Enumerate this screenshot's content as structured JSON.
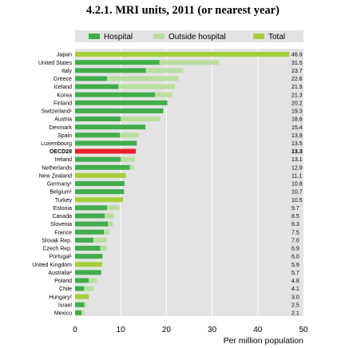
{
  "title": "4.2.1. MRI units, 2011 (or nearest year)",
  "chart_data": {
    "type": "bar",
    "orientation": "horizontal",
    "stacked": true,
    "xlabel": "Per million population",
    "xlim": [
      0,
      50
    ],
    "xticks": [
      0,
      10,
      20,
      30,
      40,
      50
    ],
    "legend_position": "top",
    "series": [
      {
        "name": "Hospital",
        "color": "#3fae49"
      },
      {
        "name": "Outside hospital",
        "color": "#b9dea0"
      },
      {
        "name": "Total",
        "color": "#a4cf3b"
      }
    ],
    "highlight_color": "#e8202a",
    "rows": [
      {
        "country": "Japan",
        "label": "46.9",
        "hospital": 0,
        "outside": 0,
        "total": 46.9
      },
      {
        "country": "United States",
        "label": "31.5",
        "hospital": 18.5,
        "outside": 13.0,
        "total": null
      },
      {
        "country": "Italy",
        "label": "23.7",
        "hospital": 15.5,
        "outside": 8.2,
        "total": null
      },
      {
        "country": "Greece",
        "label": "22.6",
        "hospital": 7.0,
        "outside": 15.6,
        "total": null
      },
      {
        "country": "Iceland",
        "label": "21.9",
        "hospital": 9.5,
        "outside": 12.4,
        "total": null
      },
      {
        "country": "Korea",
        "label": "21.3",
        "hospital": 17.5,
        "outside": 3.8,
        "total": null
      },
      {
        "country": "Finland",
        "label": "20.2",
        "hospital": 20.2,
        "outside": 0,
        "total": null
      },
      {
        "country": "Switzerland¹",
        "label": "19.3",
        "hospital": 19.3,
        "outside": 0,
        "total": null
      },
      {
        "country": "Austria",
        "label": "18.6",
        "hospital": 10.0,
        "outside": 8.6,
        "total": null
      },
      {
        "country": "Denmark",
        "label": "15.4",
        "hospital": 15.4,
        "outside": 0,
        "total": null
      },
      {
        "country": "Spain",
        "label": "13.9",
        "hospital": 9.8,
        "outside": 4.1,
        "total": null
      },
      {
        "country": "Luxembourg",
        "label": "13.5",
        "hospital": 13.5,
        "outside": 0,
        "total": null
      },
      {
        "country": "OECD28",
        "label": "13.3",
        "hospital": 0,
        "outside": 0,
        "total": 13.3,
        "highlight": true
      },
      {
        "country": "Ireland",
        "label": "13.1",
        "hospital": 10.0,
        "outside": 3.1,
        "total": null
      },
      {
        "country": "Netherlands",
        "label": "12.9",
        "hospital": 12.0,
        "outside": 0.9,
        "total": null
      },
      {
        "country": "New Zealand",
        "label": "11.1",
        "hospital": 0,
        "outside": 0,
        "total": 11.1
      },
      {
        "country": "Germany¹",
        "label": "10.8",
        "hospital": 10.8,
        "outside": 0,
        "total": null
      },
      {
        "country": "Belgium¹",
        "label": "10.7",
        "hospital": 10.7,
        "outside": 0,
        "total": null
      },
      {
        "country": "Turkey",
        "label": "10.5",
        "hospital": 0,
        "outside": 0,
        "total": 10.5
      },
      {
        "country": "Estonia",
        "label": "9.7",
        "hospital": 7.0,
        "outside": 2.7,
        "total": null
      },
      {
        "country": "Canada",
        "label": "8.5",
        "hospital": 6.5,
        "outside": 2.0,
        "total": null
      },
      {
        "country": "Slovenia",
        "label": "8.3",
        "hospital": 7.2,
        "outside": 1.1,
        "total": null
      },
      {
        "country": "France",
        "label": "7.5",
        "hospital": 6.3,
        "outside": 1.2,
        "total": null
      },
      {
        "country": "Slovak Rep.",
        "label": "7.0",
        "hospital": 4.0,
        "outside": 3.0,
        "total": null
      },
      {
        "country": "Czech Rep.",
        "label": "6.9",
        "hospital": 5.5,
        "outside": 1.4,
        "total": null
      },
      {
        "country": "Portugal¹",
        "label": "6.0",
        "hospital": 6.0,
        "outside": 0,
        "total": null
      },
      {
        "country": "United Kingdom",
        "label": "5.9",
        "hospital": 0,
        "outside": 0,
        "total": 5.9
      },
      {
        "country": "Australia²",
        "label": "5.7",
        "hospital": 5.7,
        "outside": 0,
        "total": null
      },
      {
        "country": "Poland",
        "label": "4.8",
        "hospital": 3.0,
        "outside": 1.8,
        "total": null
      },
      {
        "country": "Chile",
        "label": "4.1",
        "hospital": 2.0,
        "outside": 2.1,
        "total": null
      },
      {
        "country": "Hungary²",
        "label": "3.0",
        "hospital": 0,
        "outside": 0,
        "total": 3.0
      },
      {
        "country": "Israel",
        "label": "2.5",
        "hospital": 2.0,
        "outside": 0.5,
        "total": null
      },
      {
        "country": "Mexico",
        "label": "2.1",
        "hospital": 1.4,
        "outside": 0.7,
        "total": null
      }
    ]
  }
}
